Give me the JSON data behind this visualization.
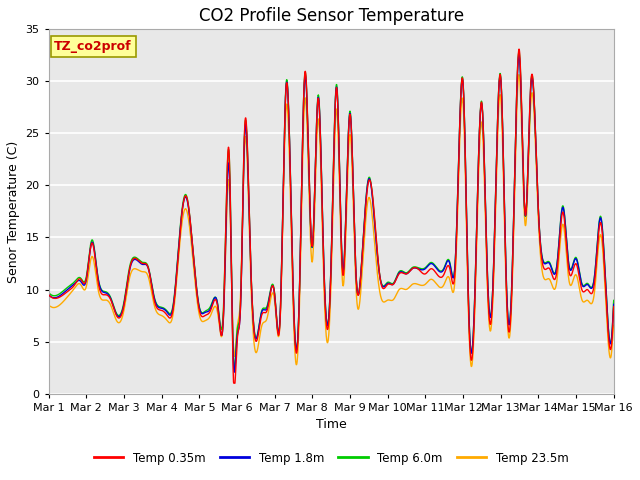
{
  "title": "CO2 Profile Sensor Temperature",
  "xlabel": "Time",
  "ylabel": "Senor Temperature (C)",
  "xlim": [
    0,
    15
  ],
  "ylim": [
    0,
    35
  ],
  "yticks": [
    0,
    5,
    10,
    15,
    20,
    25,
    30,
    35
  ],
  "xtick_labels": [
    "Mar 1",
    "Mar 2",
    "Mar 3",
    "Mar 4",
    "Mar 5",
    "Mar 6",
    "Mar 7",
    "Mar 8",
    "Mar 9",
    "Mar 10",
    "Mar 11",
    "Mar 12",
    "Mar 13",
    "Mar 14",
    "Mar 15",
    "Mar 16"
  ],
  "xtick_positions": [
    0,
    1,
    2,
    3,
    4,
    5,
    6,
    7,
    8,
    9,
    10,
    11,
    12,
    13,
    14,
    15
  ],
  "legend_labels": [
    "Temp 0.35m",
    "Temp 1.8m",
    "Temp 6.0m",
    "Temp 23.5m"
  ],
  "line_colors": [
    "#ff0000",
    "#0000dd",
    "#00cc00",
    "#ffaa00"
  ],
  "annotation_text": "TZ_co2prof",
  "annotation_color": "#cc0000",
  "annotation_bg": "#ffff99",
  "plot_bg": "#e8e8e8",
  "grid_color": "#ffffff",
  "title_fontsize": 12,
  "axis_fontsize": 9,
  "tick_fontsize": 8,
  "red_times": [
    0,
    0.25,
    0.5,
    0.7,
    0.85,
    1.0,
    1.15,
    1.3,
    1.5,
    1.65,
    1.8,
    2.0,
    2.15,
    2.3,
    2.5,
    2.65,
    2.8,
    3.0,
    3.15,
    3.3,
    3.5,
    3.65,
    3.8,
    4.0,
    4.15,
    4.3,
    4.5,
    4.65,
    4.8,
    4.9,
    5.0,
    5.1,
    5.2,
    5.35,
    5.5,
    5.65,
    5.8,
    6.0,
    6.15,
    6.3,
    6.5,
    6.65,
    6.8,
    7.0,
    7.15,
    7.3,
    7.5,
    7.65,
    7.8,
    8.0,
    8.15,
    8.3,
    8.5,
    8.65,
    8.8,
    9.0,
    9.15,
    9.3,
    9.5,
    9.65,
    9.8,
    10.0,
    10.15,
    10.3,
    10.5,
    10.65,
    10.8,
    11.0,
    11.15,
    11.3,
    11.5,
    11.65,
    11.8,
    12.0,
    12.15,
    12.3,
    12.5,
    12.65,
    12.8,
    13.0,
    13.15,
    13.3,
    13.5,
    13.65,
    13.8,
    14.0,
    14.15,
    14.3,
    14.5,
    14.65,
    14.8,
    15.0
  ],
  "red_vals": [
    9.5,
    9.2,
    9.8,
    10.5,
    11.0,
    11.0,
    14.5,
    11.0,
    9.5,
    9.0,
    7.5,
    8.5,
    12.0,
    13.0,
    12.5,
    12.0,
    9.0,
    8.0,
    7.5,
    8.0,
    16.0,
    19.0,
    15.0,
    8.0,
    7.5,
    8.0,
    8.0,
    8.5,
    22.5,
    1.5,
    5.0,
    9.0,
    25.5,
    14.0,
    5.0,
    7.5,
    8.0,
    9.5,
    7.5,
    29.5,
    8.5,
    8.5,
    31.0,
    14.0,
    28.5,
    12.5,
    12.5,
    29.5,
    11.5,
    27.0,
    12.0,
    12.0,
    20.5,
    17.0,
    11.0,
    10.5,
    10.5,
    11.5,
    11.5,
    12.0,
    12.0,
    11.5,
    12.0,
    11.5,
    11.5,
    12.0,
    12.5,
    30.0,
    7.5,
    7.5,
    28.0,
    10.5,
    10.5,
    30.5,
    10.0,
    10.5,
    33.0,
    17.0,
    30.0,
    17.5,
    12.0,
    12.0,
    12.0,
    17.5,
    12.0,
    12.5,
    10.0,
    10.0,
    11.0,
    16.5,
    9.0,
    9.0
  ],
  "blue_delta": [
    0.0,
    0.1,
    0.2,
    0.1,
    -0.2,
    -0.1,
    0.1,
    0.3,
    0.2,
    0.1,
    0.1,
    0.1,
    -0.1,
    -0.1,
    -0.1,
    0.0,
    0.2,
    0.2,
    0.3,
    0.2,
    0.1,
    -0.1,
    -0.1,
    0.2,
    0.3,
    0.2,
    0.2,
    -0.5,
    -1.0,
    1.5,
    0.5,
    -0.3,
    -0.5,
    -0.3,
    0.2,
    0.3,
    0.2,
    0.0,
    0.2,
    0.2,
    0.2,
    0.2,
    -0.2,
    -0.2,
    0.2,
    0.3,
    0.3,
    0.2,
    0.3,
    0.2,
    0.0,
    0.1,
    0.2,
    -0.5,
    0.0,
    0.1,
    0.0,
    0.1,
    0.0,
    0.0,
    0.0,
    0.5,
    0.5,
    0.5,
    0.5,
    0.5,
    0.5,
    0.0,
    0.5,
    0.5,
    0.0,
    0.5,
    0.5,
    0.0,
    0.5,
    0.5,
    -0.5,
    -0.2,
    -0.2,
    0.0,
    0.5,
    0.5,
    0.5,
    0.5,
    0.5,
    0.5,
    0.5,
    0.5,
    0.5,
    0.5,
    0.5,
    0.5
  ],
  "green_delta": [
    0.2,
    0.3,
    0.4,
    0.3,
    0.1,
    0.2,
    0.3,
    0.4,
    0.3,
    0.2,
    0.2,
    0.3,
    0.2,
    0.1,
    0.1,
    0.1,
    0.3,
    0.3,
    0.4,
    0.4,
    0.3,
    0.1,
    0.0,
    0.3,
    0.4,
    0.4,
    0.3,
    0.5,
    0.0,
    2.0,
    1.0,
    0.2,
    -0.2,
    0.0,
    0.3,
    0.4,
    0.4,
    0.1,
    0.3,
    0.3,
    0.3,
    0.3,
    -0.1,
    -0.1,
    0.3,
    0.4,
    0.4,
    0.3,
    0.4,
    0.3,
    0.1,
    0.2,
    0.3,
    -0.3,
    0.1,
    0.2,
    0.1,
    0.2,
    0.1,
    0.1,
    0.1,
    0.6,
    0.6,
    0.6,
    0.6,
    0.6,
    0.6,
    0.1,
    0.6,
    0.6,
    0.1,
    0.6,
    0.6,
    0.1,
    0.6,
    0.6,
    -0.3,
    -0.1,
    -0.1,
    0.1,
    0.6,
    0.6,
    0.6,
    0.6,
    0.6,
    0.6,
    0.6,
    0.6,
    0.6,
    0.6,
    0.6,
    0.6
  ],
  "orange_delta": [
    -1.0,
    -0.8,
    -0.5,
    -0.3,
    -0.5,
    -0.8,
    -1.2,
    -0.8,
    -0.5,
    -0.5,
    -0.5,
    -0.5,
    -0.8,
    -1.0,
    -0.8,
    -0.8,
    -0.5,
    -0.5,
    -0.5,
    -0.5,
    -0.8,
    -1.2,
    -1.0,
    -0.5,
    -0.5,
    -0.5,
    -0.5,
    -0.8,
    -2.0,
    2.5,
    1.5,
    0.5,
    -1.0,
    -1.5,
    -1.2,
    -1.0,
    -0.8,
    -0.5,
    -0.5,
    -1.5,
    -1.5,
    -1.5,
    -2.0,
    -2.0,
    -1.5,
    -1.5,
    -1.5,
    -1.5,
    -1.5,
    -1.5,
    -1.5,
    -1.5,
    -1.5,
    -2.5,
    -1.5,
    -1.5,
    -1.5,
    -1.5,
    -1.5,
    -1.5,
    -1.5,
    -1.0,
    -1.0,
    -1.0,
    -1.0,
    -1.0,
    -1.0,
    -1.5,
    -1.0,
    -1.0,
    -1.5,
    -1.0,
    -1.0,
    -1.5,
    -1.0,
    -1.0,
    -2.0,
    -1.5,
    -1.5,
    -1.0,
    -1.0,
    -1.0,
    -1.0,
    -1.0,
    -1.0,
    -1.0,
    -1.0,
    -1.0,
    -1.0,
    -1.0,
    -1.0,
    -1.0
  ]
}
